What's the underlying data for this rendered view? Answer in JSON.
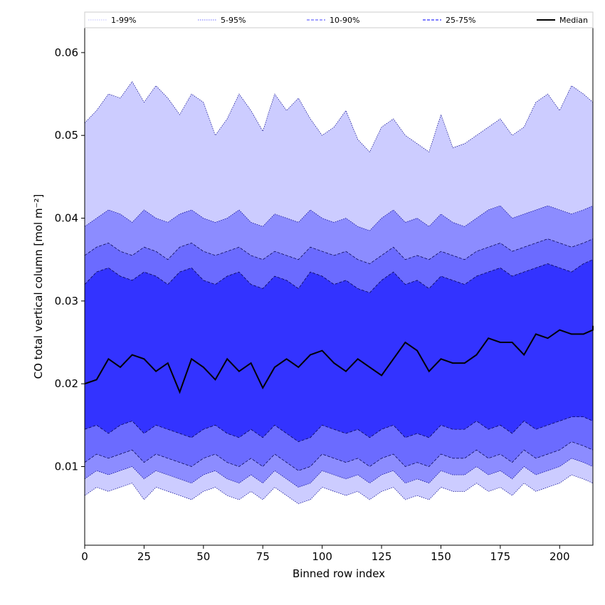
{
  "chart_data": {
    "type": "area",
    "xlabel": "Binned row index",
    "ylabel": "CO total vertical column [mol m⁻²]",
    "xlim": [
      0,
      214
    ],
    "ylim": [
      0.0005,
      0.063
    ],
    "xticks": [
      0,
      25,
      50,
      75,
      100,
      125,
      150,
      175,
      200
    ],
    "yticks": [
      0.01,
      0.02,
      0.03,
      0.04,
      0.05,
      0.06
    ],
    "ytick_labels": [
      "0.01",
      "0.02",
      "0.03",
      "0.04",
      "0.05",
      "0.06"
    ],
    "grid": false,
    "legend": {
      "placement": "top, full width",
      "entries": [
        {
          "label": "1-99%",
          "color": "#ccccff",
          "style": "dotted"
        },
        {
          "label": "5-95%",
          "color": "#8c8cff",
          "style": "dotted"
        },
        {
          "label": "10-90%",
          "color": "#6b6bff",
          "style": "dashed"
        },
        {
          "label": "25-75%",
          "color": "#3333ff",
          "style": "dashed"
        },
        {
          "label": "Median",
          "color": "#000000",
          "style": "solid"
        }
      ]
    },
    "x_step": 5,
    "bands": [
      {
        "name": "1-99%",
        "fill": "#ccccff",
        "upper": [
          0.0515,
          0.053,
          0.055,
          0.0545,
          0.0565,
          0.054,
          0.056,
          0.0545,
          0.0525,
          0.055,
          0.054,
          0.05,
          0.052,
          0.055,
          0.053,
          0.0505,
          0.055,
          0.053,
          0.0545,
          0.052,
          0.05,
          0.051,
          0.053,
          0.0495,
          0.048,
          0.051,
          0.052,
          0.05,
          0.049,
          0.048,
          0.0525,
          0.0485,
          0.049,
          0.05,
          0.051,
          0.052,
          0.05,
          0.051,
          0.054,
          0.055,
          0.053,
          0.056,
          0.055,
          0.054,
          0.057
        ],
        "lower": [
          0.0065,
          0.0075,
          0.007,
          0.0075,
          0.008,
          0.006,
          0.0075,
          0.007,
          0.0065,
          0.006,
          0.007,
          0.0075,
          0.0065,
          0.006,
          0.007,
          0.006,
          0.0075,
          0.0065,
          0.0055,
          0.006,
          0.0075,
          0.007,
          0.0065,
          0.007,
          0.006,
          0.007,
          0.0075,
          0.006,
          0.0065,
          0.006,
          0.0075,
          0.007,
          0.007,
          0.008,
          0.007,
          0.0075,
          0.0065,
          0.008,
          0.007,
          0.0075,
          0.008,
          0.009,
          0.0085,
          0.008,
          0.009
        ]
      },
      {
        "name": "5-95%",
        "fill": "#8c8cff",
        "upper": [
          0.039,
          0.04,
          0.041,
          0.0405,
          0.0395,
          0.041,
          0.04,
          0.0395,
          0.0405,
          0.041,
          0.04,
          0.0395,
          0.04,
          0.041,
          0.0395,
          0.039,
          0.0405,
          0.04,
          0.0395,
          0.041,
          0.04,
          0.0395,
          0.04,
          0.039,
          0.0385,
          0.04,
          0.041,
          0.0395,
          0.04,
          0.039,
          0.0405,
          0.0395,
          0.039,
          0.04,
          0.041,
          0.0415,
          0.04,
          0.0405,
          0.041,
          0.0415,
          0.041,
          0.0405,
          0.041,
          0.0415,
          0.042
        ],
        "lower": [
          0.0085,
          0.0095,
          0.009,
          0.0095,
          0.01,
          0.0085,
          0.0095,
          0.009,
          0.0085,
          0.008,
          0.009,
          0.0095,
          0.0085,
          0.008,
          0.009,
          0.008,
          0.0095,
          0.0085,
          0.0075,
          0.008,
          0.0095,
          0.009,
          0.0085,
          0.009,
          0.008,
          0.009,
          0.0095,
          0.008,
          0.0085,
          0.008,
          0.0095,
          0.009,
          0.009,
          0.01,
          0.009,
          0.0095,
          0.0085,
          0.01,
          0.009,
          0.0095,
          0.01,
          0.011,
          0.0105,
          0.01,
          0.011
        ]
      },
      {
        "name": "10-90%",
        "fill": "#6b6bff",
        "upper": [
          0.0355,
          0.0365,
          0.037,
          0.036,
          0.0355,
          0.0365,
          0.036,
          0.035,
          0.0365,
          0.037,
          0.036,
          0.0355,
          0.036,
          0.0365,
          0.0355,
          0.035,
          0.036,
          0.0355,
          0.035,
          0.0365,
          0.036,
          0.0355,
          0.036,
          0.035,
          0.0345,
          0.0355,
          0.0365,
          0.035,
          0.0355,
          0.035,
          0.036,
          0.0355,
          0.035,
          0.036,
          0.0365,
          0.037,
          0.036,
          0.0365,
          0.037,
          0.0375,
          0.037,
          0.0365,
          0.037,
          0.0375,
          0.038
        ],
        "lower": [
          0.0105,
          0.0115,
          0.011,
          0.0115,
          0.012,
          0.0105,
          0.0115,
          0.011,
          0.0105,
          0.01,
          0.011,
          0.0115,
          0.0105,
          0.01,
          0.011,
          0.01,
          0.0115,
          0.0105,
          0.0095,
          0.01,
          0.0115,
          0.011,
          0.0105,
          0.011,
          0.01,
          0.011,
          0.0115,
          0.01,
          0.0105,
          0.01,
          0.0115,
          0.011,
          0.011,
          0.012,
          0.011,
          0.0115,
          0.0105,
          0.012,
          0.011,
          0.0115,
          0.012,
          0.013,
          0.0125,
          0.012,
          0.013
        ]
      },
      {
        "name": "25-75%",
        "fill": "#3333ff",
        "upper": [
          0.032,
          0.0335,
          0.034,
          0.033,
          0.0325,
          0.0335,
          0.033,
          0.032,
          0.0335,
          0.034,
          0.0325,
          0.032,
          0.033,
          0.0335,
          0.032,
          0.0315,
          0.033,
          0.0325,
          0.0315,
          0.0335,
          0.033,
          0.032,
          0.0325,
          0.0315,
          0.031,
          0.0325,
          0.0335,
          0.032,
          0.0325,
          0.0315,
          0.033,
          0.0325,
          0.032,
          0.033,
          0.0335,
          0.034,
          0.033,
          0.0335,
          0.034,
          0.0345,
          0.034,
          0.0335,
          0.0345,
          0.035,
          0.0355
        ],
        "lower": [
          0.0145,
          0.015,
          0.014,
          0.015,
          0.0155,
          0.014,
          0.015,
          0.0145,
          0.014,
          0.0135,
          0.0145,
          0.015,
          0.014,
          0.0135,
          0.0145,
          0.0135,
          0.015,
          0.014,
          0.013,
          0.0135,
          0.015,
          0.0145,
          0.014,
          0.0145,
          0.0135,
          0.0145,
          0.015,
          0.0135,
          0.014,
          0.0135,
          0.015,
          0.0145,
          0.0145,
          0.0155,
          0.0145,
          0.015,
          0.014,
          0.0155,
          0.0145,
          0.015,
          0.0155,
          0.016,
          0.016,
          0.0155,
          0.0165
        ]
      }
    ],
    "median": {
      "name": "Median",
      "color": "#000000",
      "values": [
        0.02,
        0.0205,
        0.023,
        0.022,
        0.0235,
        0.023,
        0.0215,
        0.0225,
        0.019,
        0.023,
        0.022,
        0.0205,
        0.023,
        0.0215,
        0.0225,
        0.0195,
        0.022,
        0.023,
        0.022,
        0.0235,
        0.024,
        0.0225,
        0.0215,
        0.023,
        0.022,
        0.021,
        0.023,
        0.025,
        0.024,
        0.0215,
        0.023,
        0.0225,
        0.0225,
        0.0235,
        0.0255,
        0.025,
        0.025,
        0.0235,
        0.026,
        0.0255,
        0.0265,
        0.026,
        0.026,
        0.0265,
        0.027
      ]
    }
  }
}
